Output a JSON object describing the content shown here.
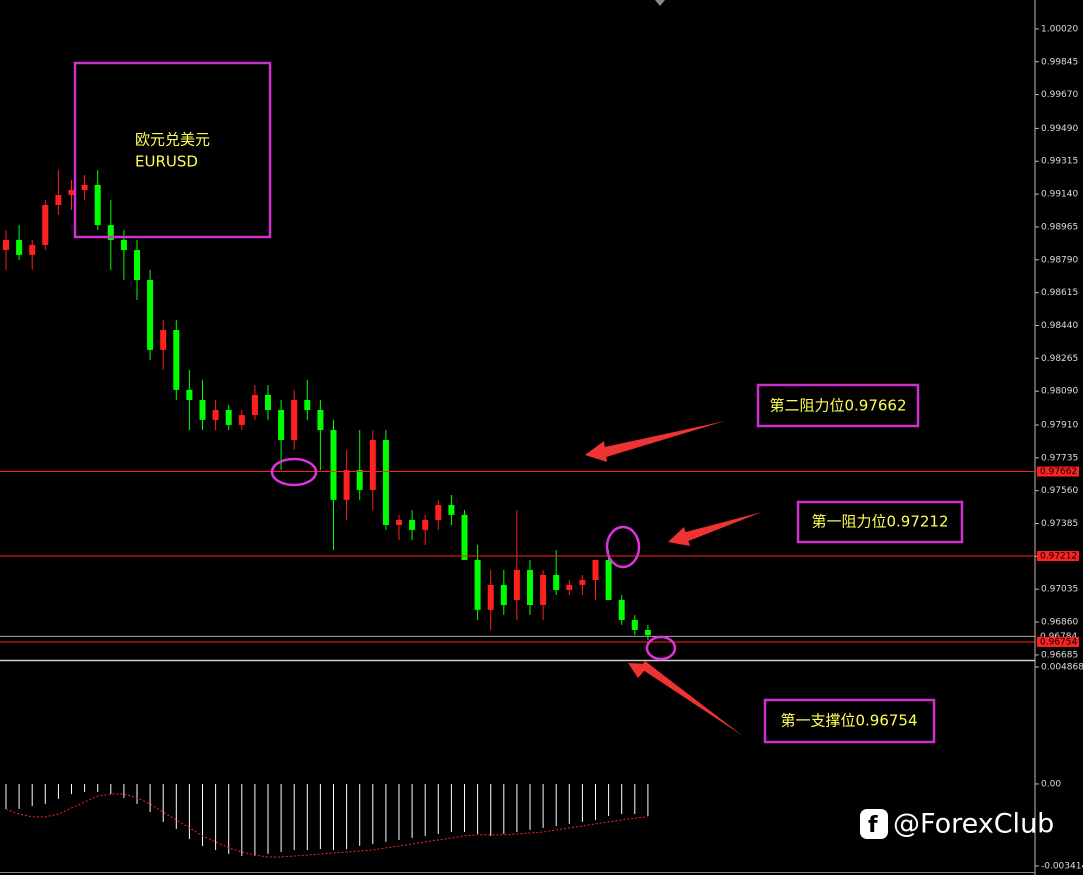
{
  "chart_data": [
    {
      "type": "candlestick",
      "up_color": "#ff2020",
      "down_color": "#00ff00",
      "open": [
        0.98842,
        0.98896,
        0.98816,
        0.98869,
        0.99082,
        0.99135,
        0.99162,
        0.99189,
        0.98975,
        0.98896,
        0.98842,
        0.98682,
        0.9831,
        0.98416,
        0.98097,
        0.98043,
        0.97937,
        0.9799,
        0.9791,
        0.97963,
        0.9807,
        0.9799,
        0.9783,
        0.98043,
        0.9799,
        0.97883,
        0.97511,
        0.9767,
        0.97564,
        0.9783,
        0.97377,
        0.97404,
        0.97351,
        0.97404,
        0.97484,
        0.97431,
        0.97191,
        0.96925,
        0.97058,
        0.96978,
        0.97138,
        0.96951,
        0.97111,
        0.97031,
        0.97058,
        0.97084,
        0.97191,
        0.96978,
        0.96871,
        0.96818
      ],
      "high": [
        0.98949,
        0.98975,
        0.98896,
        0.99109,
        0.99268,
        0.99215,
        0.99242,
        0.99268,
        0.99109,
        0.98949,
        0.98896,
        0.98736,
        0.98469,
        0.98469,
        0.98203,
        0.9815,
        0.98043,
        0.98017,
        0.9799,
        0.98123,
        0.98123,
        0.98043,
        0.98097,
        0.9815,
        0.98043,
        0.97937,
        0.97777,
        0.97883,
        0.97883,
        0.97883,
        0.97431,
        0.97457,
        0.97431,
        0.97511,
        0.97537,
        0.97457,
        0.97271,
        0.97138,
        0.97138,
        0.97457,
        0.97191,
        0.97138,
        0.97244,
        0.97084,
        0.97111,
        0.97191,
        0.97244,
        0.97004,
        0.96898,
        0.96845
      ],
      "low": [
        0.98736,
        0.98789,
        0.98736,
        0.98842,
        0.99029,
        0.99055,
        0.99109,
        0.98949,
        0.98736,
        0.98682,
        0.98576,
        0.98256,
        0.98203,
        0.98043,
        0.97883,
        0.97883,
        0.97883,
        0.97883,
        0.97883,
        0.97937,
        0.97937,
        0.9767,
        0.97777,
        0.97937,
        0.9767,
        0.97244,
        0.97404,
        0.97511,
        0.97457,
        0.97351,
        0.97297,
        0.97297,
        0.97271,
        0.97351,
        0.97377,
        0.97191,
        0.96871,
        0.96818,
        0.96898,
        0.96871,
        0.96898,
        0.96871,
        0.97004,
        0.97004,
        0.97004,
        0.96978,
        0.96978,
        0.96845,
        0.96791,
        0.96765
      ],
      "close": [
        0.98896,
        0.98816,
        0.98869,
        0.99082,
        0.99135,
        0.99162,
        0.99189,
        0.98975,
        0.98896,
        0.98842,
        0.98682,
        0.9831,
        0.98416,
        0.98097,
        0.98043,
        0.97937,
        0.9799,
        0.9791,
        0.97963,
        0.9807,
        0.9799,
        0.9783,
        0.98043,
        0.9799,
        0.97883,
        0.97511,
        0.9767,
        0.97564,
        0.9783,
        0.97377,
        0.97404,
        0.97351,
        0.97404,
        0.97484,
        0.97431,
        0.97191,
        0.96925,
        0.97058,
        0.96951,
        0.97138,
        0.96951,
        0.97111,
        0.97031,
        0.97058,
        0.97084,
        0.97191,
        0.96978,
        0.96871,
        0.96818,
        0.96791
      ],
      "ylim": [
        0.96658,
        1.00174
      ],
      "yticks": [
        {
          "value": 1.0002,
          "label": "1.00020"
        },
        0.99845,
        {
          "value": 0.9967,
          "label": "0.99670"
        },
        {
          "value": 0.9949,
          "label": "0.99490"
        },
        0.99315,
        {
          "value": 0.9914,
          "label": "0.99140"
        },
        0.98965,
        {
          "value": 0.9879,
          "label": "0.98790"
        },
        0.98615,
        {
          "value": 0.9844,
          "label": "0.98440"
        },
        0.98265,
        {
          "value": 0.9809,
          "label": "0.98090"
        },
        {
          "value": 0.9791,
          "label": "0.97910"
        },
        0.97735,
        {
          "value": 0.9756,
          "label": "0.97560"
        },
        0.97385,
        {
          "value": 0.9721,
          "label": "0.97210"
        },
        0.97035,
        {
          "value": 0.9686,
          "label": "0.96860"
        },
        0.96685
      ],
      "levels": [
        {
          "value": 0.97662,
          "color": "#ff2020"
        },
        {
          "value": 0.97212,
          "color": "#ff2020"
        },
        {
          "value": 0.96784,
          "color": "#aaaaaa"
        },
        {
          "value": 0.96754,
          "color": "#ff2020"
        }
      ],
      "annotations": [
        "欧元兑美元",
        "EURUSD",
        "第二阻力位0.97662",
        "第一阻力位0.97212",
        "第一支撑位0.96754"
      ]
    },
    {
      "type": "macd",
      "color": "#ffffff",
      "signal_color": "#ff2020",
      "values": [
        -0.00104,
        -0.00104,
        -0.00092,
        -0.00083,
        -0.00062,
        -0.00042,
        -0.00033,
        -0.00033,
        -0.00042,
        -0.00058,
        -0.00083,
        -0.00117,
        -0.00158,
        -0.00187,
        -0.00229,
        -0.00258,
        -0.00275,
        -0.00291,
        -0.003,
        -0.003,
        -0.00291,
        -0.00283,
        -0.00275,
        -0.00275,
        -0.00271,
        -0.00275,
        -0.00271,
        -0.00258,
        -0.0025,
        -0.00241,
        -0.00233,
        -0.00225,
        -0.00216,
        -0.00208,
        -0.002,
        -0.002,
        -0.00208,
        -0.00216,
        -0.00208,
        -0.002,
        -0.00191,
        -0.00183,
        -0.00175,
        -0.00166,
        -0.00158,
        -0.0015,
        -0.00133,
        -0.00125,
        -0.00125,
        -0.00133
      ],
      "signal": [
        -0.00104,
        -0.00125,
        -0.00137,
        -0.00137,
        -0.00125,
        -0.001,
        -0.00075,
        -0.0005,
        -0.00042,
        -0.00042,
        -0.00058,
        -0.00083,
        -0.00117,
        -0.0015,
        -0.00183,
        -0.00216,
        -0.00241,
        -0.00266,
        -0.00283,
        -0.00296,
        -0.00304,
        -0.00304,
        -0.003,
        -0.00296,
        -0.00291,
        -0.00287,
        -0.00283,
        -0.00279,
        -0.00275,
        -0.00266,
        -0.00258,
        -0.0025,
        -0.00241,
        -0.00233,
        -0.00225,
        -0.00216,
        -0.00212,
        -0.00212,
        -0.00212,
        -0.00208,
        -0.00204,
        -0.002,
        -0.00191,
        -0.00183,
        -0.00175,
        -0.00166,
        -0.00158,
        -0.0015,
        -0.00142,
        -0.00137
      ],
      "ylim": [
        -0.003789,
        0.005076
      ],
      "yticks": [
        0.004868,
        {
          "value": 0,
          "label": "0.00"
        },
        -0.003414
      ]
    }
  ],
  "watermark": "@ForexClub"
}
